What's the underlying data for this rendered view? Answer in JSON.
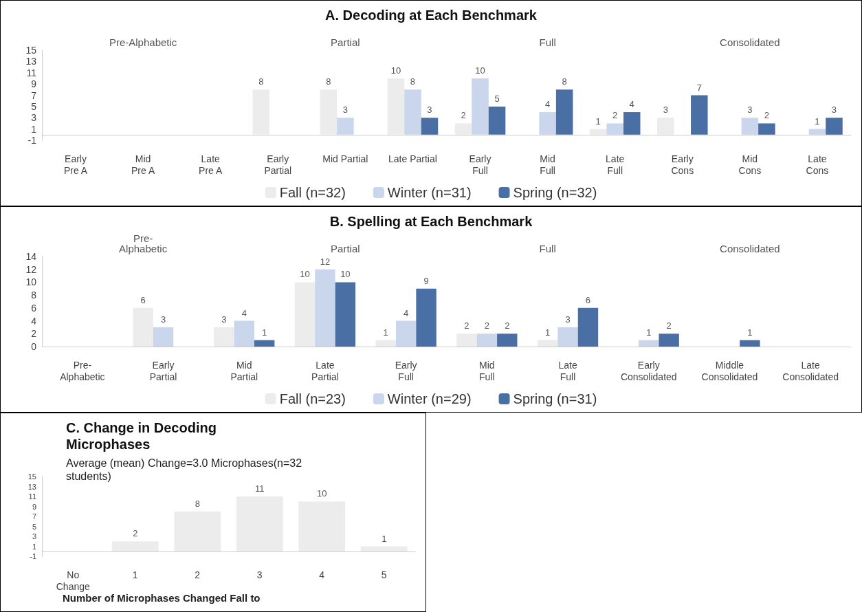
{
  "chart_data": [
    {
      "type": "bar",
      "title": "A. Decoding at Each Benchmark",
      "categories": [
        "Early\nPre A",
        "Mid\nPre A",
        "Late\nPre A",
        "Early\nPartial",
        "Mid Partial",
        "Late Partial",
        "Early\nFull",
        "Mid\nFull",
        "Late\nFull",
        "Early\nCons",
        "Mid\nCons",
        "Late\nCons"
      ],
      "series": [
        {
          "name": "Fall (n=32)",
          "color": "#ececec",
          "values": [
            0,
            0,
            0,
            8,
            8,
            10,
            2,
            0,
            1,
            3,
            0,
            0
          ],
          "value_labels": [
            null,
            null,
            null,
            "8",
            "8",
            "10",
            "2",
            null,
            "1",
            "3",
            null,
            null
          ]
        },
        {
          "name": "Winter (n=31)",
          "color": "#c9d6ec",
          "values": [
            0,
            0,
            0,
            0,
            3,
            8,
            10,
            4,
            2,
            0,
            3,
            1
          ],
          "value_labels": [
            null,
            null,
            null,
            null,
            "3",
            "8",
            "10",
            "4",
            "2",
            null,
            "3",
            "1"
          ]
        },
        {
          "name": "Spring (n=32)",
          "color": "#4a6fa5",
          "values": [
            0,
            0,
            0,
            0,
            0,
            3,
            5,
            8,
            4,
            7,
            2,
            3
          ],
          "value_labels": [
            null,
            null,
            null,
            null,
            null,
            "3",
            "5",
            "8",
            "4",
            "7",
            "2",
            "3"
          ]
        }
      ],
      "ylim": [
        -1,
        15
      ],
      "yticks": [
        -1,
        1,
        3,
        5,
        7,
        9,
        11,
        13,
        15
      ],
      "legend": "bottom",
      "annotations": [
        "Pre-Alphabetic",
        "Partial",
        "Full",
        "Consolidated"
      ]
    },
    {
      "type": "bar",
      "title": "B. Spelling at Each Benchmark",
      "categories": [
        "Pre-\nAlphabetic",
        "Early\nPartial",
        "Mid\nPartial",
        "Late\nPartial",
        "Early\nFull",
        "Mid\nFull",
        "Late\nFull",
        "Early\nConsolidated",
        "Middle\nConsolidated",
        "Late\nConsolidated"
      ],
      "series": [
        {
          "name": "Fall (n=23)",
          "color": "#ececec",
          "values": [
            0,
            6,
            3,
            10,
            1,
            2,
            1,
            0,
            0,
            0
          ],
          "value_labels": [
            null,
            "6",
            "3",
            "10",
            "1",
            "2",
            "1",
            null,
            null,
            null
          ]
        },
        {
          "name": "Winter (n=29)",
          "color": "#c9d6ec",
          "values": [
            0,
            3,
            4,
            12,
            4,
            2,
            3,
            1,
            0,
            0
          ],
          "value_labels": [
            null,
            "3",
            "4",
            "12",
            "4",
            "2",
            "3",
            "1",
            null,
            null
          ]
        },
        {
          "name": "Spring (n=31)",
          "color": "#4a6fa5",
          "values": [
            0,
            0,
            1,
            10,
            9,
            2,
            6,
            2,
            1,
            0
          ],
          "value_labels": [
            null,
            null,
            "1",
            "10",
            "9",
            "2",
            "6",
            "2",
            "1",
            null
          ]
        }
      ],
      "ylim": [
        0,
        14
      ],
      "yticks": [
        0,
        2,
        4,
        6,
        8,
        10,
        12,
        14
      ],
      "legend": "bottom",
      "annotations": [
        "Pre-\nAlphabetic",
        "Partial",
        "Full",
        "Consolidated"
      ]
    },
    {
      "type": "bar",
      "title": "C. Change in Decoding\nMicrophases",
      "subtitle": "Average (mean) Change=3.0 Microphases(n=32\nstudents)",
      "xlabel": "Number of Microphases Changed Fall to",
      "categories": [
        "No\nChange",
        "1",
        "2",
        "3",
        "4",
        "5"
      ],
      "values": [
        0,
        2,
        8,
        11,
        10,
        1
      ],
      "color": "#ececec",
      "value_labels": [
        null,
        "2",
        "8",
        "11",
        "10",
        "1"
      ],
      "ylim": [
        -1,
        15
      ],
      "yticks": [
        -1,
        1,
        3,
        5,
        7,
        9,
        11,
        13,
        15
      ]
    }
  ]
}
